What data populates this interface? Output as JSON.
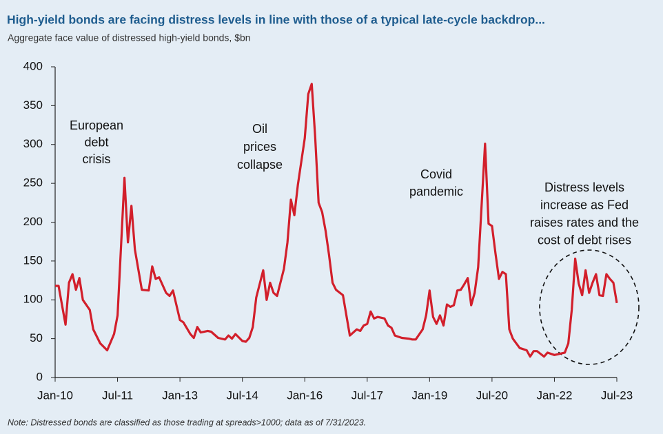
{
  "chart_data": {
    "type": "line",
    "title": "High-yield bonds are facing distress levels in line with those of a typical late-cycle backdrop...",
    "subtitle": "Aggregate face value of distressed high-yield bonds, $bn",
    "note": "Note: Distressed bonds are classified as those trading at spreads>1000; data as of 7/31/2023.",
    "x": [
      "2010-01",
      "2010-02",
      "2010-04",
      "2010-05",
      "2010-06",
      "2010-07",
      "2010-08",
      "2010-09",
      "2010-11",
      "2010-12",
      "2011-02",
      "2011-04",
      "2011-06",
      "2011-07",
      "2011-09",
      "2011-10",
      "2011-11",
      "2011-12",
      "2012-02",
      "2012-04",
      "2012-05",
      "2012-06",
      "2012-07",
      "2012-09",
      "2012-10",
      "2012-11",
      "2013-01",
      "2013-02",
      "2013-04",
      "2013-05",
      "2013-06",
      "2013-07",
      "2013-09",
      "2013-10",
      "2013-12",
      "2014-02",
      "2014-03",
      "2014-04",
      "2014-05",
      "2014-07",
      "2014-08",
      "2014-09",
      "2014-10",
      "2014-11",
      "2015-01",
      "2015-02",
      "2015-03",
      "2015-04",
      "2015-05",
      "2015-07",
      "2015-08",
      "2015-09",
      "2015-10",
      "2015-11",
      "2016-01",
      "2016-02",
      "2016-03",
      "2016-04",
      "2016-05",
      "2016-06",
      "2016-07",
      "2016-08",
      "2016-09",
      "2016-10",
      "2016-12",
      "2017-01",
      "2017-02",
      "2017-04",
      "2017-05",
      "2017-06",
      "2017-07",
      "2017-08",
      "2017-09",
      "2017-10",
      "2017-12",
      "2018-01",
      "2018-02",
      "2018-03",
      "2018-05",
      "2018-07",
      "2018-08",
      "2018-09",
      "2018-11",
      "2018-12",
      "2019-01",
      "2019-02",
      "2019-03",
      "2019-04",
      "2019-05",
      "2019-06",
      "2019-07",
      "2019-08",
      "2019-09",
      "2019-10",
      "2019-11",
      "2019-12",
      "2020-01",
      "2020-02",
      "2020-03",
      "2020-05",
      "2020-06",
      "2020-07",
      "2020-08",
      "2020-09",
      "2020-10",
      "2020-11",
      "2020-12",
      "2021-01",
      "2021-02",
      "2021-03",
      "2021-05",
      "2021-06",
      "2021-07",
      "2021-08",
      "2021-10",
      "2021-11",
      "2022-01",
      "2022-02",
      "2022-04",
      "2022-05",
      "2022-06",
      "2022-07",
      "2022-08",
      "2022-09",
      "2022-10",
      "2022-11",
      "2022-12",
      "2023-01",
      "2023-02",
      "2023-03",
      "2023-04",
      "2023-05",
      "2023-06",
      "2023-07"
    ],
    "series": [
      {
        "color": "#d21f2b",
        "values": [
          118,
          118,
          68,
          122,
          133,
          113,
          128,
          100,
          87,
          62,
          44,
          35,
          56,
          80,
          257,
          174,
          221,
          165,
          113,
          112,
          143,
          127,
          129,
          109,
          105,
          112,
          74,
          71,
          56,
          51,
          65,
          58,
          60,
          59,
          51,
          49,
          54,
          50,
          56,
          47,
          46,
          51,
          65,
          103,
          138,
          100,
          122,
          109,
          105,
          140,
          174,
          229,
          209,
          248,
          308,
          365,
          378,
          310,
          225,
          213,
          189,
          158,
          122,
          113,
          106,
          80,
          54,
          62,
          60,
          67,
          69,
          85,
          76,
          78,
          76,
          67,
          64,
          54,
          51,
          50,
          49,
          49,
          62,
          80,
          112,
          78,
          69,
          80,
          67,
          94,
          91,
          93,
          112,
          113,
          120,
          128,
          93,
          109,
          142,
          301,
          198,
          195,
          160,
          127,
          136,
          133,
          62,
          50,
          44,
          38,
          35,
          27,
          34,
          34,
          27,
          32,
          29,
          30,
          32,
          44,
          87,
          153,
          121,
          106,
          138,
          109,
          122,
          133,
          106,
          105,
          133,
          127,
          122,
          96
        ]
      }
    ],
    "xlim": [
      "2010-01",
      "2023-07"
    ],
    "xticks": [
      {
        "value": "2010-01",
        "label": "Jan-10"
      },
      {
        "value": "2011-07",
        "label": "Jul-11"
      },
      {
        "value": "2013-01",
        "label": "Jan-13"
      },
      {
        "value": "2014-07",
        "label": "Jul-14"
      },
      {
        "value": "2016-01",
        "label": "Jan-16"
      },
      {
        "value": "2017-07",
        "label": "Jul-17"
      },
      {
        "value": "2019-01",
        "label": "Jan-19"
      },
      {
        "value": "2020-07",
        "label": "Jul-20"
      },
      {
        "value": "2022-01",
        "label": "Jan-22"
      },
      {
        "value": "2023-07",
        "label": "Jul-23"
      }
    ],
    "ylim": [
      0,
      400
    ],
    "yticks": [
      0,
      50,
      100,
      150,
      200,
      250,
      300,
      350,
      400
    ],
    "annotations": [
      {
        "lines": [
          "European",
          "debt",
          "crisis"
        ]
      },
      {
        "lines": [
          "Oil",
          "prices",
          "collapse"
        ]
      },
      {
        "lines": [
          "Covid",
          "pandemic"
        ]
      },
      {
        "lines": [
          "Distress levels",
          "increase as Fed",
          "raises rates and the",
          "cost of debt rises"
        ]
      }
    ]
  }
}
